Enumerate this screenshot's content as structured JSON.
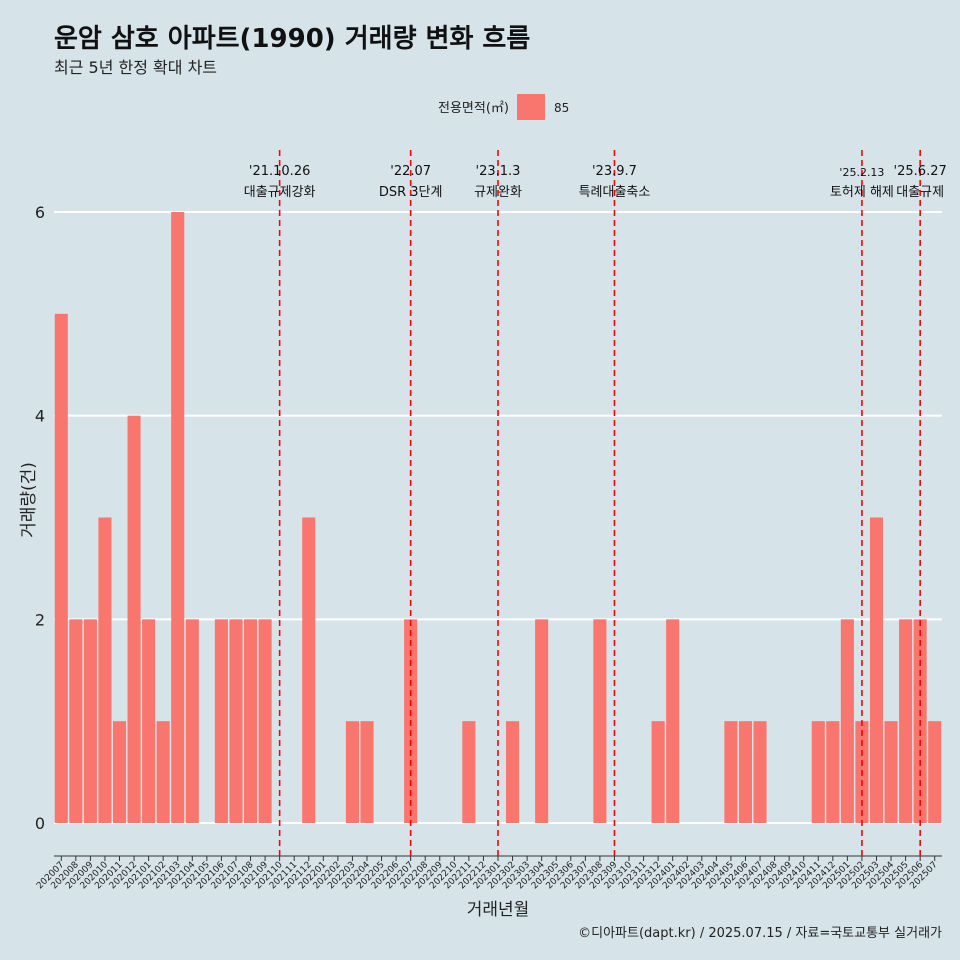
{
  "chart_data": {
    "type": "bar",
    "title": "운암 삼호 아파트(1990) 거래량 변화 흐름",
    "subtitle": "최근 5년 한정 확대 차트",
    "xlabel": "거래년월",
    "ylabel": "거래량(건)",
    "legend": {
      "title": "전용면적(㎡)",
      "position": "top",
      "entries": [
        {
          "label": "85",
          "color": "#f8766d"
        }
      ]
    },
    "ylim": [
      0,
      6.6
    ],
    "yticks": [
      0,
      2,
      4,
      6
    ],
    "grid": true,
    "categories": [
      "202007",
      "202008",
      "202009",
      "202010",
      "202011",
      "202012",
      "202101",
      "202102",
      "202103",
      "202104",
      "202105",
      "202106",
      "202107",
      "202108",
      "202109",
      "202110",
      "202111",
      "202112",
      "202201",
      "202202",
      "202203",
      "202204",
      "202205",
      "202206",
      "202207",
      "202208",
      "202209",
      "202210",
      "202211",
      "202212",
      "202301",
      "202302",
      "202303",
      "202304",
      "202305",
      "202306",
      "202307",
      "202308",
      "202309",
      "202310",
      "202311",
      "202312",
      "202401",
      "202402",
      "202403",
      "202404",
      "202405",
      "202406",
      "202407",
      "202408",
      "202409",
      "202410",
      "202411",
      "202412",
      "202501",
      "202502",
      "202503",
      "202504",
      "202505",
      "202506",
      "202507"
    ],
    "series": [
      {
        "name": "85",
        "color": "#f8766d",
        "values": [
          5,
          2,
          2,
          3,
          1,
          4,
          2,
          1,
          6,
          2,
          0,
          2,
          2,
          2,
          2,
          0,
          0,
          3,
          0,
          0,
          1,
          1,
          0,
          0,
          2,
          0,
          0,
          0,
          1,
          0,
          0,
          1,
          0,
          2,
          0,
          0,
          0,
          2,
          0,
          0,
          0,
          1,
          2,
          0,
          0,
          0,
          1,
          1,
          1,
          0,
          0,
          0,
          1,
          1,
          2,
          1,
          3,
          1,
          2,
          2,
          1
        ]
      }
    ],
    "annotations": [
      {
        "x": "202110",
        "date": "'21.10.26",
        "label": "대출규제강화"
      },
      {
        "x": "202207",
        "date": "'22.07",
        "label": "DSR 3단계"
      },
      {
        "x": "202301",
        "date": "'23.1.3",
        "label": "규제완화"
      },
      {
        "x": "202309",
        "date": "'23.9.7",
        "label": "특례대출축소"
      },
      {
        "x": "202502",
        "date": "'25.2.13",
        "label": "토허제 해제"
      },
      {
        "x": "202506",
        "date": "'25.6.27",
        "label": "대출규제"
      }
    ],
    "annotation_color": "#ff0000"
  },
  "caption": "©디아파트(dapt.kr) / 2025.07.15 / 자료=국토교통부 실거래가"
}
